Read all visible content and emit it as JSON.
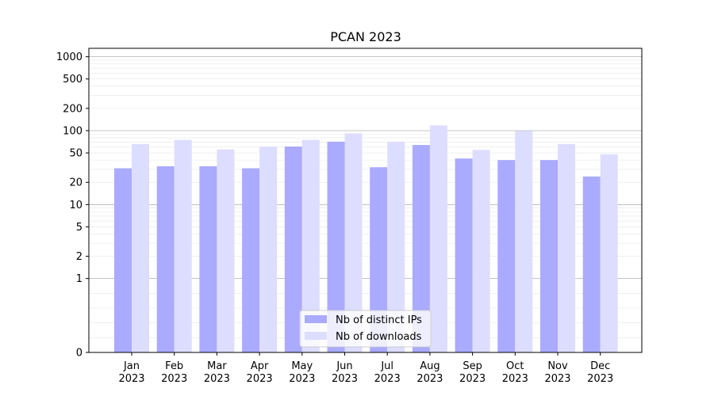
{
  "chart_data": {
    "type": "bar",
    "title": "PCAN 2023",
    "xlabel": "",
    "ylabel": "",
    "y_scale": "symlog",
    "ylim": [
      0,
      1300
    ],
    "y_ticks": [
      {
        "value": 0,
        "label": "0"
      },
      {
        "value": 1,
        "label": "1"
      },
      {
        "value": 2,
        "label": "2"
      },
      {
        "value": 5,
        "label": "5"
      },
      {
        "value": 10,
        "label": "10"
      },
      {
        "value": 20,
        "label": "20"
      },
      {
        "value": 50,
        "label": "50"
      },
      {
        "value": 100,
        "label": "100"
      },
      {
        "value": 200,
        "label": "200"
      },
      {
        "value": 500,
        "label": "500"
      },
      {
        "value": 1000,
        "label": "1000"
      }
    ],
    "grid": true,
    "legend_position": "bottom-center",
    "categories": [
      {
        "month": "Jan",
        "year": "2023"
      },
      {
        "month": "Feb",
        "year": "2023"
      },
      {
        "month": "Mar",
        "year": "2023"
      },
      {
        "month": "Apr",
        "year": "2023"
      },
      {
        "month": "May",
        "year": "2023"
      },
      {
        "month": "Jun",
        "year": "2023"
      },
      {
        "month": "Jul",
        "year": "2023"
      },
      {
        "month": "Aug",
        "year": "2023"
      },
      {
        "month": "Sep",
        "year": "2023"
      },
      {
        "month": "Oct",
        "year": "2023"
      },
      {
        "month": "Nov",
        "year": "2023"
      },
      {
        "month": "Dec",
        "year": "2023"
      }
    ],
    "series": [
      {
        "name": "Nb of distinct IPs",
        "color": "#aaaaff",
        "values": [
          31,
          33,
          33,
          31,
          61,
          71,
          32,
          64,
          42,
          40,
          40,
          24
        ]
      },
      {
        "name": "Nb of downloads",
        "color": "#ddddff",
        "values": [
          66,
          75,
          56,
          61,
          75,
          92,
          71,
          118,
          55,
          99,
          66,
          48
        ]
      }
    ]
  }
}
